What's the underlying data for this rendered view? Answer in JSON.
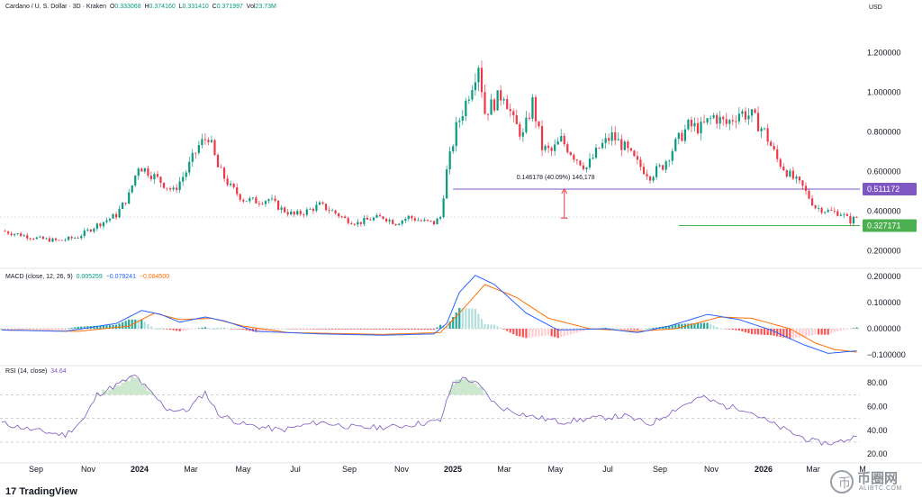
{
  "header": {
    "symbol": "Cardano / U. S. Dollar · 3D · Kraken",
    "o_label": "O",
    "o": "0.333068",
    "h_label": "H",
    "h": "0.374160",
    "l_label": "L",
    "l": "0.331410",
    "c_label": "C",
    "c": "0.371997",
    "vol_label": "Vol",
    "vol": "23.73M"
  },
  "currency": "USD",
  "brand": "TradingView",
  "watermark": {
    "icon": "币-logo-icon",
    "title": "币圈网",
    "url": "ALIBTC.COM"
  },
  "colors": {
    "up": "#089981",
    "down": "#f23645",
    "macd": "#2962ff",
    "signal": "#ff6d00",
    "rsi": "#7e57c2",
    "level": "#7e57c2",
    "support": "#4caf50"
  },
  "chart_data": [
    {
      "type": "candlestick",
      "title": "Cardano / U. S. Dollar · 3D · Kraken",
      "y_ticks": [
        1.2,
        1.0,
        0.8,
        0.6,
        0.4,
        0.2
      ],
      "y_tick_labels": [
        "1.200000",
        "1.000000",
        "0.800000",
        "0.600000",
        "0.400000",
        "0.200000"
      ],
      "ylim": [
        0.12,
        1.33
      ],
      "x_tick_labels": [
        "Sep",
        "Nov",
        "2024",
        "Mar",
        "May",
        "Jul",
        "Sep",
        "Nov",
        "2025",
        "Mar",
        "May",
        "Jul",
        "Sep",
        "Nov",
        "2026",
        "Mar",
        "M"
      ],
      "bold_x_ticks": [
        "2024",
        "2025",
        "2026"
      ],
      "price_path": [
        [
          0,
          0.3
        ],
        [
          6,
          0.28
        ],
        [
          12,
          0.26
        ],
        [
          18,
          0.25
        ],
        [
          24,
          0.27
        ],
        [
          30,
          0.33
        ],
        [
          36,
          0.38
        ],
        [
          40,
          0.48
        ],
        [
          43,
          0.63
        ],
        [
          46,
          0.6
        ],
        [
          50,
          0.55
        ],
        [
          54,
          0.5
        ],
        [
          58,
          0.6
        ],
        [
          62,
          0.73
        ],
        [
          65,
          0.78
        ],
        [
          68,
          0.62
        ],
        [
          72,
          0.52
        ],
        [
          76,
          0.46
        ],
        [
          80,
          0.45
        ],
        [
          84,
          0.46
        ],
        [
          88,
          0.41
        ],
        [
          92,
          0.38
        ],
        [
          96,
          0.4
        ],
        [
          100,
          0.43
        ],
        [
          104,
          0.4
        ],
        [
          108,
          0.36
        ],
        [
          112,
          0.34
        ],
        [
          116,
          0.36
        ],
        [
          120,
          0.37
        ],
        [
          124,
          0.34
        ],
        [
          128,
          0.37
        ],
        [
          132,
          0.35
        ],
        [
          136,
          0.34
        ],
        [
          138,
          0.37
        ],
        [
          140,
          0.6
        ],
        [
          143,
          0.82
        ],
        [
          146,
          0.95
        ],
        [
          148,
          1.05
        ],
        [
          150,
          1.15
        ],
        [
          152,
          0.9
        ],
        [
          155,
          0.95
        ],
        [
          158,
          1.0
        ],
        [
          161,
          0.85
        ],
        [
          164,
          0.78
        ],
        [
          167,
          0.95
        ],
        [
          170,
          0.72
        ],
        [
          173,
          0.7
        ],
        [
          176,
          0.76
        ],
        [
          180,
          0.68
        ],
        [
          184,
          0.62
        ],
        [
          188,
          0.72
        ],
        [
          192,
          0.78
        ],
        [
          196,
          0.72
        ],
        [
          200,
          0.64
        ],
        [
          204,
          0.58
        ],
        [
          208,
          0.63
        ],
        [
          212,
          0.74
        ],
        [
          216,
          0.83
        ],
        [
          220,
          0.82
        ],
        [
          224,
          0.88
        ],
        [
          228,
          0.84
        ],
        [
          232,
          0.9
        ],
        [
          236,
          0.88
        ],
        [
          240,
          0.8
        ],
        [
          244,
          0.66
        ],
        [
          248,
          0.58
        ],
        [
          252,
          0.52
        ],
        [
          256,
          0.42
        ],
        [
          260,
          0.4
        ],
        [
          264,
          0.39
        ],
        [
          267,
          0.35
        ],
        [
          269,
          0.37
        ]
      ],
      "level_labels": [
        {
          "value": 0.511172,
          "text": "0.511172"
        },
        {
          "value": 0.327171,
          "text": "0.327171"
        }
      ],
      "measure_annotation": {
        "from": 0.365,
        "to": 0.511172,
        "text": "0.146178 (40.09%) 146,178"
      }
    },
    {
      "type": "macd",
      "title": "MACD (close, 12, 26, 9)",
      "values_shown": [
        "0.005259",
        "−0.079241",
        "−0.084500"
      ],
      "y_tick_labels": [
        "0.200000",
        "0.100000",
        "0.000000",
        "−0.100000"
      ],
      "y_ticks": [
        0.2,
        0.1,
        0.0,
        -0.1
      ],
      "ylim": [
        -0.135,
        0.225
      ],
      "macd": [
        [
          0,
          -0.005
        ],
        [
          20,
          -0.01
        ],
        [
          36,
          0.02
        ],
        [
          44,
          0.07
        ],
        [
          50,
          0.055
        ],
        [
          56,
          0.025
        ],
        [
          64,
          0.045
        ],
        [
          70,
          0.03
        ],
        [
          80,
          -0.01
        ],
        [
          100,
          -0.02
        ],
        [
          120,
          -0.025
        ],
        [
          136,
          -0.02
        ],
        [
          140,
          0.02
        ],
        [
          144,
          0.14
        ],
        [
          149,
          0.205
        ],
        [
          155,
          0.17
        ],
        [
          165,
          0.06
        ],
        [
          175,
          -0.005
        ],
        [
          190,
          0.0
        ],
        [
          200,
          -0.015
        ],
        [
          210,
          0.01
        ],
        [
          222,
          0.055
        ],
        [
          232,
          0.035
        ],
        [
          242,
          -0.005
        ],
        [
          252,
          -0.06
        ],
        [
          260,
          -0.095
        ],
        [
          269,
          -0.085
        ]
      ],
      "signal": [
        [
          0,
          -0.005
        ],
        [
          24,
          -0.01
        ],
        [
          40,
          0.01
        ],
        [
          48,
          0.06
        ],
        [
          56,
          0.035
        ],
        [
          66,
          0.04
        ],
        [
          76,
          0.01
        ],
        [
          90,
          -0.015
        ],
        [
          120,
          -0.022
        ],
        [
          138,
          -0.015
        ],
        [
          144,
          0.06
        ],
        [
          152,
          0.17
        ],
        [
          162,
          0.12
        ],
        [
          172,
          0.04
        ],
        [
          185,
          0.0
        ],
        [
          200,
          -0.01
        ],
        [
          212,
          0.0
        ],
        [
          226,
          0.045
        ],
        [
          236,
          0.04
        ],
        [
          248,
          0.0
        ],
        [
          256,
          -0.055
        ],
        [
          262,
          -0.08
        ],
        [
          269,
          -0.09
        ]
      ]
    },
    {
      "type": "rsi",
      "title": "RSI (14, close)",
      "value_shown": "34.64",
      "y_tick_labels": [
        "80.00",
        "60.00",
        "40.00",
        "20.00"
      ],
      "y_ticks": [
        80,
        60,
        40,
        20
      ],
      "ylim": [
        14,
        93
      ],
      "band_levels": [
        70,
        50,
        30
      ],
      "rsi": [
        [
          0,
          46
        ],
        [
          10,
          40
        ],
        [
          20,
          36
        ],
        [
          26,
          50
        ],
        [
          30,
          70
        ],
        [
          36,
          78
        ],
        [
          42,
          86
        ],
        [
          46,
          74
        ],
        [
          52,
          58
        ],
        [
          58,
          56
        ],
        [
          64,
          72
        ],
        [
          68,
          54
        ],
        [
          76,
          45
        ],
        [
          88,
          40
        ],
        [
          100,
          47
        ],
        [
          112,
          42
        ],
        [
          124,
          43
        ],
        [
          132,
          46
        ],
        [
          138,
          48
        ],
        [
          142,
          80
        ],
        [
          146,
          84
        ],
        [
          150,
          78
        ],
        [
          156,
          60
        ],
        [
          166,
          52
        ],
        [
          176,
          47
        ],
        [
          186,
          50
        ],
        [
          196,
          52
        ],
        [
          204,
          45
        ],
        [
          212,
          58
        ],
        [
          220,
          68
        ],
        [
          228,
          60
        ],
        [
          234,
          58
        ],
        [
          242,
          46
        ],
        [
          250,
          36
        ],
        [
          256,
          30
        ],
        [
          262,
          29
        ],
        [
          269,
          34.64
        ]
      ]
    }
  ]
}
